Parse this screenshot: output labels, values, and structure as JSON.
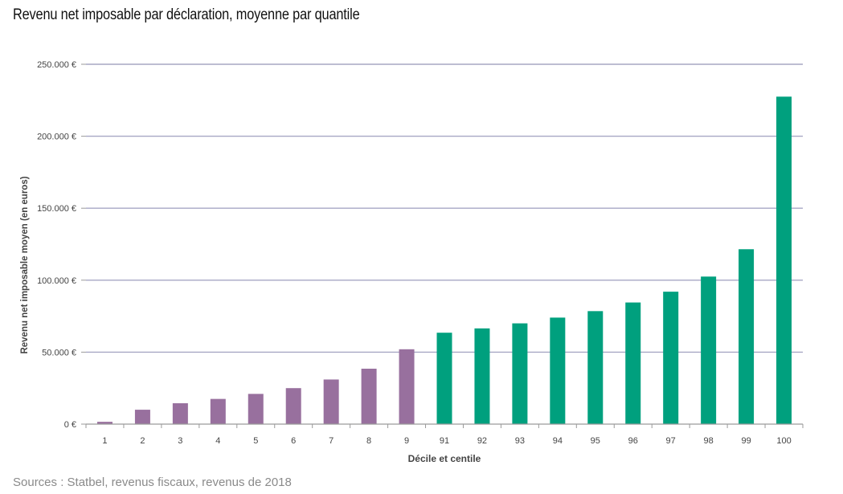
{
  "title": "Revenu net imposable par déclaration, moyenne par quantile",
  "source": "Sources : Statbel, revenus fiscaux, revenus de 2018",
  "chart_data": {
    "type": "bar",
    "categories": [
      "1",
      "2",
      "3",
      "4",
      "5",
      "6",
      "7",
      "8",
      "9",
      "91",
      "92",
      "93",
      "94",
      "95",
      "96",
      "97",
      "98",
      "99",
      "100"
    ],
    "values": [
      1600,
      10000,
      14500,
      17500,
      21000,
      25000,
      31000,
      38500,
      52000,
      63500,
      66500,
      70000,
      74000,
      78500,
      84500,
      92000,
      102500,
      121500,
      227500
    ],
    "bar_colors": [
      "#98709e",
      "#98709e",
      "#98709e",
      "#98709e",
      "#98709e",
      "#98709e",
      "#98709e",
      "#98709e",
      "#98709e",
      "#00a07e",
      "#00a07e",
      "#00a07e",
      "#00a07e",
      "#00a07e",
      "#00a07e",
      "#00a07e",
      "#00a07e",
      "#00a07e",
      "#00a07e"
    ],
    "xlabel": "Décile et centile",
    "ylabel": "Revenu net imposable moyen (en euros)",
    "ylim": [
      0,
      250000
    ],
    "yticks": [
      0,
      50000,
      100000,
      150000,
      200000,
      250000
    ],
    "ytick_labels": [
      "0 €",
      "50.000 €",
      "100.000 €",
      "150.000 €",
      "200.000 €",
      "250.000 €"
    ],
    "grid": true
  }
}
